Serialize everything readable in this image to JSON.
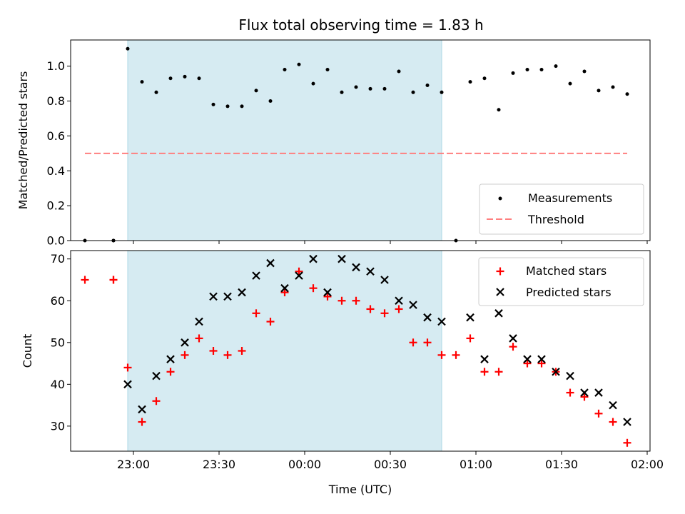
{
  "chart_data": {
    "title": "Flux total observing time = 1.83 h",
    "xlabel": "Time (UTC)",
    "x_tick_labels": [
      "23:00",
      "23:30",
      "00:00",
      "00:30",
      "01:00",
      "01:30",
      "02:00"
    ],
    "x_range": [
      "22:38",
      "02:01"
    ],
    "observing_window": [
      "22:58",
      "00:48"
    ],
    "colors": {
      "window": "#add8e6",
      "measurements": "#000000",
      "threshold": "#ff7f7f",
      "matched": "#ff0000",
      "predicted": "#000000"
    },
    "panels": [
      {
        "type": "scatter",
        "ylabel": "Matched/Predicted stars",
        "ylim": [
          0,
          1.15
        ],
        "y_ticks": [
          "0.0",
          "0.2",
          "0.4",
          "0.6",
          "0.8",
          "1.0"
        ],
        "legend_position": "lower-right",
        "series": [
          {
            "name": "Measurements",
            "marker": "dot",
            "x": [
              "22:43",
              "22:53",
              "22:53",
              "22:58",
              "23:03",
              "23:08",
              "23:13",
              "23:18",
              "23:23",
              "23:28",
              "23:33",
              "23:38",
              "23:43",
              "23:48",
              "23:53",
              "23:58",
              "00:03",
              "00:08",
              "00:13",
              "00:18",
              "00:23",
              "00:28",
              "00:33",
              "00:38",
              "00:43",
              "00:48",
              "00:53",
              "00:58",
              "01:03",
              "01:08",
              "01:13",
              "01:18",
              "01:23",
              "01:28",
              "01:33",
              "01:38",
              "01:43",
              "01:48",
              "01:53"
            ],
            "y": [
              0.0,
              0.0,
              0.0,
              1.1,
              0.91,
              0.85,
              0.93,
              0.94,
              0.93,
              0.78,
              0.77,
              0.77,
              0.86,
              0.8,
              0.98,
              1.01,
              0.9,
              0.98,
              0.85,
              0.88,
              0.87,
              0.87,
              0.97,
              0.85,
              0.89,
              0.85,
              0.0,
              0.91,
              0.93,
              0.75,
              0.96,
              0.98,
              0.98,
              1.0,
              0.9,
              0.97,
              0.86,
              0.88,
              0.84
            ]
          },
          {
            "name": "Threshold",
            "marker": "dashed-line",
            "x": [
              "22:43",
              "01:53"
            ],
            "y": [
              0.5,
              0.5
            ]
          }
        ]
      },
      {
        "type": "scatter",
        "ylabel": "Count",
        "ylim": [
          24,
          72
        ],
        "y_ticks": [
          "30",
          "40",
          "50",
          "60",
          "70"
        ],
        "legend_position": "top-right",
        "series": [
          {
            "name": "Matched stars",
            "marker": "plus",
            "x": [
              "22:43",
              "22:53",
              "22:53",
              "22:58",
              "23:03",
              "23:08",
              "23:13",
              "23:18",
              "23:23",
              "23:28",
              "23:33",
              "23:38",
              "23:43",
              "23:48",
              "23:53",
              "23:58",
              "00:03",
              "00:08",
              "00:13",
              "00:18",
              "00:23",
              "00:28",
              "00:33",
              "00:38",
              "00:43",
              "00:48",
              "00:53",
              "00:58",
              "01:03",
              "01:08",
              "01:13",
              "01:18",
              "01:23",
              "01:28",
              "01:33",
              "01:38",
              "01:43",
              "01:48",
              "01:53"
            ],
            "y": [
              65,
              65,
              65,
              44,
              31,
              36,
              43,
              47,
              51,
              48,
              47,
              48,
              57,
              55,
              62,
              67,
              63,
              61,
              60,
              60,
              58,
              57,
              58,
              50,
              50,
              47,
              47,
              51,
              43,
              43,
              49,
              45,
              45,
              43,
              38,
              37,
              33,
              31,
              26
            ]
          },
          {
            "name": "Predicted stars",
            "marker": "cross",
            "x": [
              "22:58",
              "23:03",
              "23:08",
              "23:13",
              "23:18",
              "23:23",
              "23:28",
              "23:33",
              "23:38",
              "23:43",
              "23:48",
              "23:53",
              "23:58",
              "00:03",
              "00:08",
              "00:13",
              "00:18",
              "00:23",
              "00:28",
              "00:33",
              "00:38",
              "00:43",
              "00:48",
              "00:58",
              "01:03",
              "01:08",
              "01:13",
              "01:18",
              "01:23",
              "01:28",
              "01:33",
              "01:38",
              "01:43",
              "01:48",
              "01:53"
            ],
            "y": [
              40,
              34,
              42,
              46,
              50,
              55,
              61,
              61,
              62,
              66,
              69,
              63,
              66,
              70,
              62,
              70,
              68,
              67,
              65,
              60,
              59,
              56,
              55,
              56,
              46,
              57,
              51,
              46,
              46,
              43,
              42,
              38,
              38,
              35,
              31
            ]
          }
        ]
      }
    ]
  }
}
